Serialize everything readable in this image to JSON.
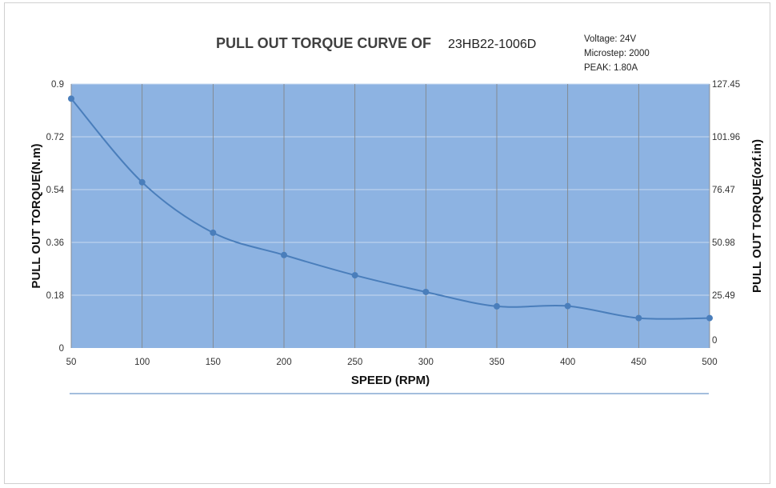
{
  "chart_data": {
    "type": "line",
    "title": "PULL OUT TORQUE  CURVE OF",
    "title_model": "23HB22-1006D",
    "specs": [
      "Voltage: 24V",
      "Microstep: 2000",
      "PEAK: 1.80A"
    ],
    "xlabel": "SPEED (RPM)",
    "ylabel": "PULL OUT TORQUE(N.m)",
    "ylabel_right": "PULL OUT TORQUE(ozf.in)",
    "xlim": [
      50,
      500
    ],
    "ylim": [
      0,
      0.9
    ],
    "x_ticks": [
      "50",
      "100",
      "150",
      "200",
      "250",
      "300",
      "350",
      "400",
      "450",
      "500"
    ],
    "y_ticks": [
      "0",
      "0.18",
      "0.36",
      "0.54",
      "0.72",
      "0.9"
    ],
    "y_ticks_right": [
      "0",
      "25.49",
      "50.98",
      "76.47",
      "101.96",
      "127.45"
    ],
    "grid": true,
    "legend": "none",
    "series": [
      {
        "x": [
          50,
          100,
          150,
          200,
          250,
          300,
          350,
          400,
          450,
          500
        ],
        "values": [
          0.85,
          0.565,
          0.393,
          0.317,
          0.248,
          0.191,
          0.142,
          0.143,
          0.102,
          0.102
        ]
      }
    ],
    "colors": {
      "plot_bg": "#8db3e2",
      "line": "#4a7ebb",
      "grid": "#808080",
      "hgrid": "#c6d9f0"
    }
  }
}
